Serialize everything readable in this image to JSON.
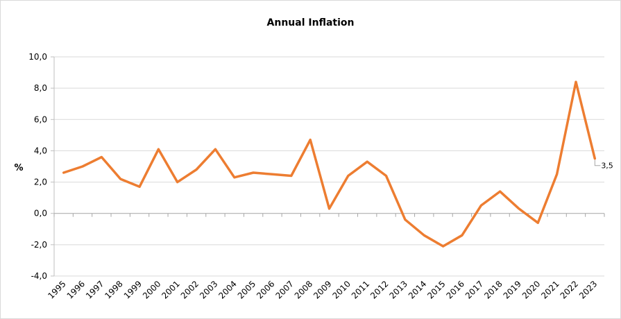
{
  "chart_data": {
    "type": "line",
    "title": "Annual Inflation",
    "xlabel": "",
    "ylabel": "%",
    "x": [
      "1995",
      "1996",
      "1997",
      "1998",
      "1999",
      "2000",
      "2001",
      "2002",
      "2003",
      "2004",
      "2005",
      "2006",
      "2007",
      "2008",
      "2009",
      "2010",
      "2011",
      "2012",
      "2013",
      "2014",
      "2015",
      "2016",
      "2017",
      "2018",
      "2019",
      "2020",
      "2021",
      "2022",
      "2023"
    ],
    "series": [
      {
        "values": [
          2.6,
          3.0,
          3.6,
          2.2,
          1.7,
          4.1,
          2.0,
          2.8,
          4.1,
          2.3,
          2.6,
          2.5,
          2.4,
          4.7,
          0.3,
          2.4,
          3.3,
          2.4,
          -0.4,
          -1.4,
          -2.1,
          -1.4,
          0.5,
          1.4,
          0.3,
          -0.6,
          2.5,
          8.4,
          3.5
        ],
        "color": "#ed7d31"
      }
    ],
    "yticks": [
      "-4,0",
      "-2,0",
      "0,0",
      "2,0",
      "4,0",
      "6,0",
      "8,0",
      "10,0"
    ],
    "ylim": [
      -4,
      10
    ],
    "grid": true,
    "data_labels": [
      {
        "index": 28,
        "text": "3,5"
      }
    ],
    "legend": "none"
  }
}
